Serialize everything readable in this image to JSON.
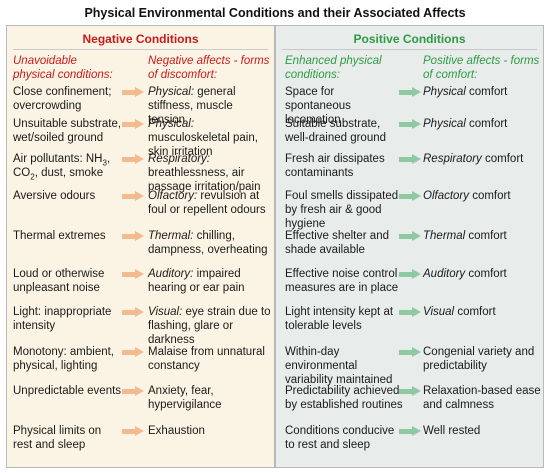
{
  "title": "Physical Environmental Conditions and their Associated Affects",
  "negative": {
    "heading": "Negative Conditions",
    "col_conditions": "Unavoidable physical conditions:",
    "col_affects": "Negative affects - forms of discomfort:",
    "rows": [
      {
        "condition": "Close confinement; overcrowding",
        "affect_em": "Physical:",
        "affect": " general stiffness, muscle tension"
      },
      {
        "condition": "Unsuitable substrate, wet/soiled ground",
        "affect_em": "Physical:",
        "affect": " musculoskeletal pain, skin irritation"
      },
      {
        "condition": "Air pollutants: NH3, CO2, dust, smoke",
        "affect_em": "Respiratory:",
        "affect": " breathlessness, air passage irritation/pain"
      },
      {
        "condition": "Aversive odours",
        "affect_em": "Olfactory:",
        "affect": " revulsion at foul or repellent odours"
      },
      {
        "condition": "Thermal extremes",
        "affect_em": "Thermal:",
        "affect": " chilling, dampness, overheating"
      },
      {
        "condition": "Loud or otherwise unpleasant noise",
        "affect_em": "Auditory:",
        "affect": " impaired hearing or ear pain"
      },
      {
        "condition": "Light: inappropriate intensity",
        "affect_em": "Visual:",
        "affect": " eye strain due to flashing, glare or darkness"
      },
      {
        "condition": "Monotony: ambient, physical, lighting",
        "affect_em": "",
        "affect": "Malaise from unnatural constancy"
      },
      {
        "condition": "Unpredictable events",
        "affect_em": "",
        "affect": "Anxiety, fear, hypervigilance"
      },
      {
        "condition": "Physical limits on rest and sleep",
        "affect_em": "",
        "affect": "Exhaustion"
      }
    ]
  },
  "positive": {
    "heading": "Positive Conditions",
    "col_conditions": "Enhanced physical conditions:",
    "col_affects": "Positive affects - forms of comfort:",
    "rows": [
      {
        "condition": "Space for spontaneous locomotion",
        "affect_em": "Physical",
        "affect": " comfort"
      },
      {
        "condition": "Suitable substrate, well-drained ground",
        "affect_em": "Physical",
        "affect": " comfort"
      },
      {
        "condition": "Fresh air dissipates contaminants",
        "affect_em": "Respiratory",
        "affect": " comfort"
      },
      {
        "condition": "Foul smells dissipated by fresh air & good hygiene",
        "affect_em": "Olfactory",
        "affect": " comfort"
      },
      {
        "condition": "Effective shelter and shade available",
        "affect_em": "Thermal",
        "affect": " comfort"
      },
      {
        "condition": "Effective noise control measures are in place",
        "affect_em": "Auditory",
        "affect": " comfort"
      },
      {
        "condition": "Light intensity kept at tolerable levels",
        "affect_em": "Visual",
        "affect": " comfort"
      },
      {
        "condition": "Within-day environmental variability maintained",
        "affect_em": "",
        "affect": "Congenial variety and predictability"
      },
      {
        "condition": "Predictability achieved by established routines",
        "affect_em": "",
        "affect": "Relaxation-based ease and calmness"
      },
      {
        "condition": "Conditions conducive to rest and sleep",
        "affect_em": "",
        "affect": "Well rested"
      }
    ]
  }
}
